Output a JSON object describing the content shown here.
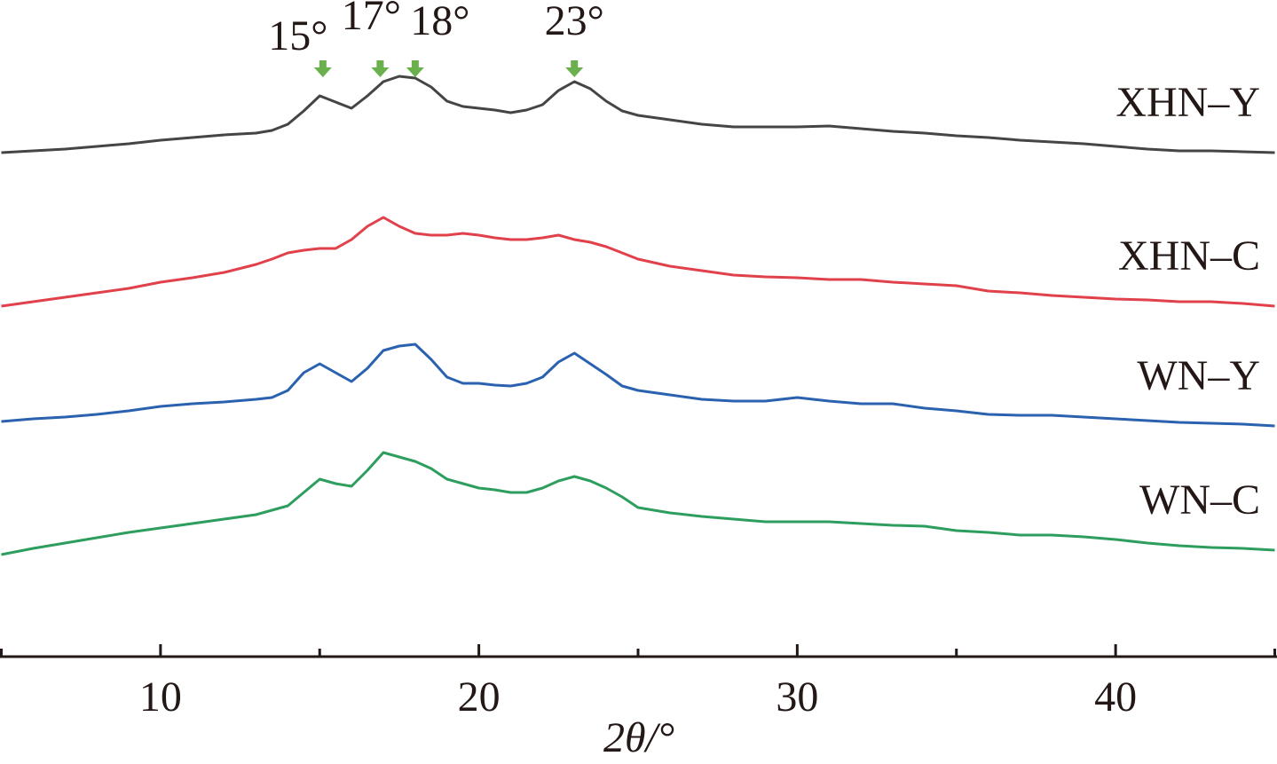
{
  "chart_data": {
    "type": "line",
    "x_label": "2θ/°",
    "x": [
      5,
      6,
      7,
      8,
      9,
      10,
      11,
      12,
      13,
      13.5,
      14,
      14.5,
      15,
      15.5,
      16,
      16.5,
      17,
      17.5,
      18,
      18.5,
      19,
      19.5,
      20,
      20.5,
      21,
      21.5,
      22,
      22.5,
      23,
      23.5,
      24,
      24.5,
      25,
      26,
      27,
      28,
      29,
      30,
      31,
      32,
      33,
      34,
      35,
      36,
      37,
      38,
      39,
      40,
      41,
      42,
      43,
      44,
      45
    ],
    "xlim": [
      5,
      45
    ],
    "xticks": [
      10,
      20,
      30,
      40
    ],
    "xminorticks": [
      5,
      15,
      25,
      35,
      45
    ],
    "ylim": [
      0,
      740
    ],
    "series": [
      {
        "name": "XHN–Y",
        "color": "#454545",
        "values": [
          568,
          570,
          572,
          575,
          578,
          582,
          585,
          588,
          590,
          593,
          600,
          615,
          632,
          625,
          618,
          632,
          648,
          654,
          652,
          642,
          626,
          620,
          618,
          616,
          613,
          616,
          622,
          638,
          648,
          640,
          626,
          615,
          610,
          605,
          600,
          597,
          597,
          597,
          598,
          595,
          592,
          590,
          587,
          585,
          582,
          580,
          578,
          575,
          572,
          570,
          570,
          569,
          568
        ]
      },
      {
        "name": "XHN–C",
        "color": "#e0414b",
        "values": [
          395,
          400,
          405,
          410,
          415,
          422,
          427,
          433,
          442,
          448,
          455,
          458,
          460,
          460,
          470,
          485,
          495,
          485,
          477,
          475,
          475,
          477,
          475,
          472,
          470,
          470,
          472,
          475,
          470,
          467,
          462,
          455,
          448,
          440,
          435,
          430,
          428,
          427,
          425,
          425,
          422,
          420,
          418,
          412,
          410,
          407,
          405,
          403,
          402,
          400,
          400,
          398,
          395
        ]
      },
      {
        "name": "WN–Y",
        "color": "#2a62b0",
        "values": [
          265,
          268,
          270,
          273,
          277,
          282,
          285,
          287,
          290,
          292,
          300,
          320,
          330,
          320,
          310,
          325,
          345,
          350,
          352,
          335,
          315,
          308,
          308,
          306,
          305,
          308,
          315,
          332,
          342,
          330,
          318,
          305,
          300,
          295,
          290,
          288,
          288,
          292,
          288,
          285,
          285,
          280,
          277,
          273,
          272,
          272,
          270,
          268,
          266,
          264,
          263,
          262,
          260
        ]
      },
      {
        "name": "WN–C",
        "color": "#2e9e5e",
        "values": [
          115,
          122,
          128,
          134,
          140,
          145,
          150,
          155,
          160,
          165,
          170,
          185,
          200,
          195,
          192,
          210,
          230,
          225,
          220,
          212,
          200,
          195,
          190,
          188,
          185,
          185,
          190,
          198,
          203,
          198,
          190,
          180,
          168,
          162,
          158,
          155,
          152,
          152,
          152,
          150,
          148,
          147,
          142,
          140,
          137,
          137,
          135,
          132,
          128,
          125,
          123,
          122,
          120
        ]
      }
    ],
    "annotations": [
      {
        "text": "15°",
        "x": 15.1
      },
      {
        "text": "17°",
        "x": 16.9
      },
      {
        "text": "18°",
        "x": 18
      },
      {
        "text": "23°",
        "x": 23
      }
    ],
    "annotation_color": "#6ab04c"
  }
}
